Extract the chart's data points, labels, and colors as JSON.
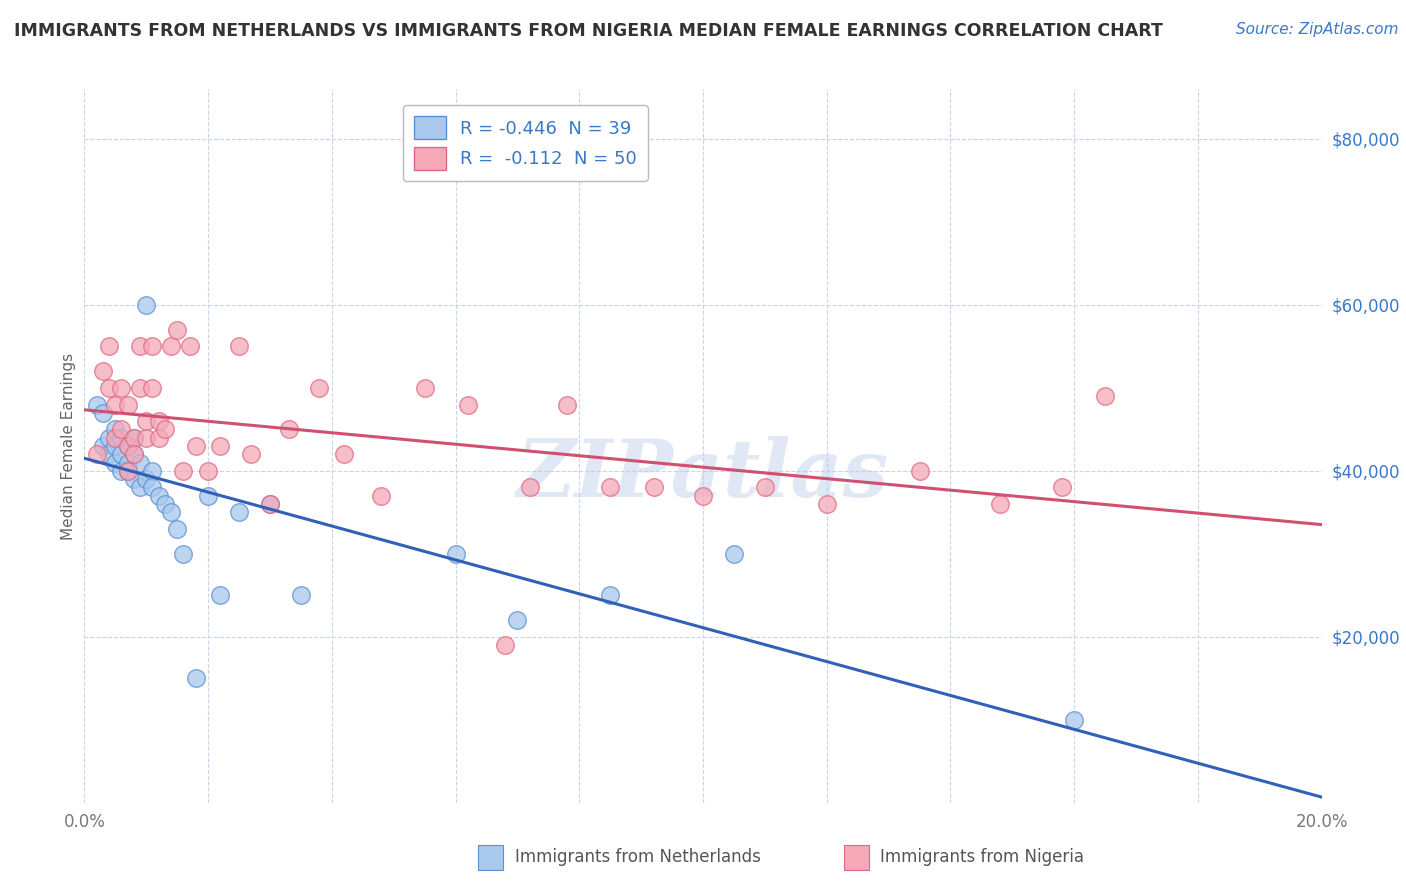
{
  "title": "IMMIGRANTS FROM NETHERLANDS VS IMMIGRANTS FROM NIGERIA MEDIAN FEMALE EARNINGS CORRELATION CHART",
  "source": "Source: ZipAtlas.com",
  "ylabel": "Median Female Earnings",
  "xlim": [
    0.0,
    0.2
  ],
  "ylim": [
    0,
    86000
  ],
  "yticks": [
    0,
    20000,
    40000,
    60000,
    80000
  ],
  "ytick_labels": [
    "",
    "$20,000",
    "$40,000",
    "$60,000",
    "$80,000"
  ],
  "background_color": "#ffffff",
  "grid_color": "#c8d4e8",
  "watermark": "ZIPatlas",
  "netherlands_color": "#a8c8ee",
  "nigeria_color": "#f4a8b8",
  "netherlands_edge_color": "#5890d0",
  "nigeria_edge_color": "#e06880",
  "netherlands_line_color": "#3060b8",
  "nigeria_line_color": "#d05070",
  "label_color": "#3a78c9",
  "R_netherlands": -0.446,
  "N_netherlands": 39,
  "R_nigeria": -0.112,
  "N_nigeria": 50,
  "netherlands_x": [
    0.002,
    0.003,
    0.003,
    0.004,
    0.004,
    0.005,
    0.005,
    0.005,
    0.006,
    0.006,
    0.006,
    0.007,
    0.007,
    0.007,
    0.008,
    0.008,
    0.008,
    0.009,
    0.009,
    0.01,
    0.01,
    0.011,
    0.011,
    0.012,
    0.013,
    0.014,
    0.015,
    0.016,
    0.018,
    0.02,
    0.022,
    0.025,
    0.03,
    0.035,
    0.06,
    0.07,
    0.085,
    0.105,
    0.16
  ],
  "netherlands_y": [
    48000,
    43000,
    47000,
    42000,
    44000,
    43000,
    41000,
    45000,
    44000,
    42000,
    40000,
    43000,
    41000,
    40000,
    44000,
    42000,
    39000,
    41000,
    38000,
    60000,
    39000,
    40000,
    38000,
    37000,
    36000,
    35000,
    33000,
    30000,
    15000,
    37000,
    25000,
    35000,
    36000,
    25000,
    30000,
    22000,
    25000,
    30000,
    10000
  ],
  "nigeria_x": [
    0.002,
    0.003,
    0.004,
    0.004,
    0.005,
    0.005,
    0.006,
    0.006,
    0.007,
    0.007,
    0.007,
    0.008,
    0.008,
    0.009,
    0.009,
    0.01,
    0.01,
    0.011,
    0.011,
    0.012,
    0.012,
    0.013,
    0.014,
    0.015,
    0.016,
    0.017,
    0.018,
    0.02,
    0.022,
    0.025,
    0.027,
    0.03,
    0.033,
    0.038,
    0.042,
    0.048,
    0.055,
    0.062,
    0.068,
    0.072,
    0.078,
    0.085,
    0.092,
    0.1,
    0.11,
    0.12,
    0.135,
    0.148,
    0.158,
    0.165
  ],
  "nigeria_y": [
    42000,
    52000,
    55000,
    50000,
    48000,
    44000,
    50000,
    45000,
    48000,
    43000,
    40000,
    44000,
    42000,
    55000,
    50000,
    44000,
    46000,
    55000,
    50000,
    44000,
    46000,
    45000,
    55000,
    57000,
    40000,
    55000,
    43000,
    40000,
    43000,
    55000,
    42000,
    36000,
    45000,
    50000,
    42000,
    37000,
    50000,
    48000,
    19000,
    38000,
    48000,
    38000,
    38000,
    37000,
    38000,
    36000,
    40000,
    36000,
    38000,
    49000
  ],
  "title_fontsize": 12.5,
  "source_fontsize": 11,
  "tick_fontsize": 12,
  "legend_fontsize": 13
}
